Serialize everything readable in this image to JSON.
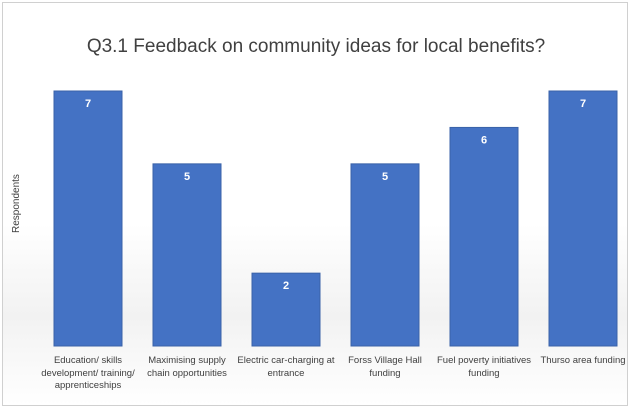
{
  "chart_data": {
    "type": "bar",
    "title": "Q3.1 Feedback on community ideas for local benefits?",
    "xlabel": "",
    "ylabel": "Respondents",
    "ylim": [
      0,
      7
    ],
    "grid": false,
    "categories": [
      "Education/  skills development/ training/ apprenticeships",
      "Maximising supply chain opportunities",
      "Electric car-charging at entrance",
      "Forss Village Hall funding",
      "Fuel poverty initiatives funding",
      "Thurso area funding"
    ],
    "values": [
      7,
      5,
      2,
      5,
      6,
      7
    ],
    "data_labels": [
      "7",
      "5",
      "2",
      "5",
      "6",
      "7"
    ],
    "colors": {
      "bar": "#4472c4",
      "bar_edge": "#3a62a8",
      "label": "#ffffff"
    }
  }
}
